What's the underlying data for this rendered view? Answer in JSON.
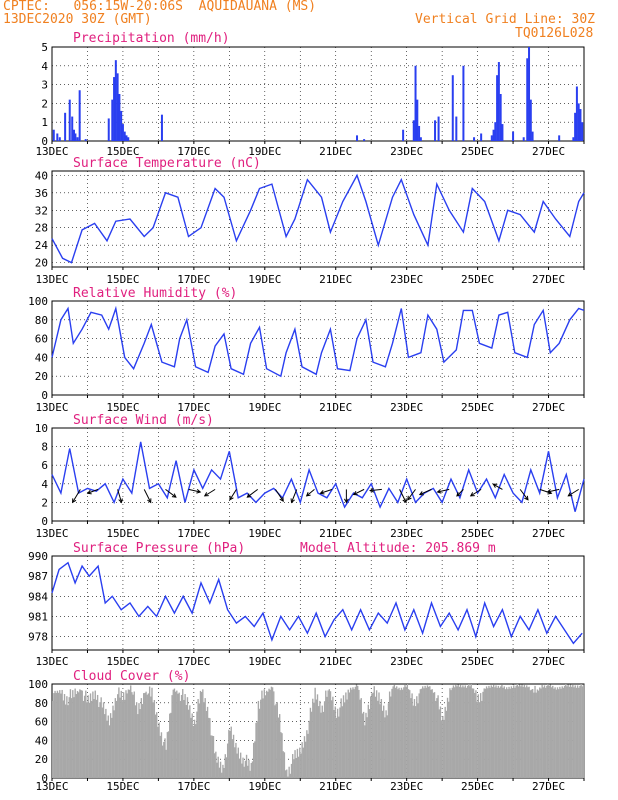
{
  "header": {
    "left_line1": "CPTEC:   056:15W-20:06S  AQUIDAUANA (MS)",
    "left_line2": "13DEC2020 30Z (GMT)",
    "right_line1": "Vertical Grid Line: 30Z",
    "right_line2": "TQ0126L028"
  },
  "colors": {
    "title": "#e0207f",
    "header": "#f08020",
    "line": "#2a3ff0",
    "cloud": "#a8a8a8",
    "wind_arrow": "#000000"
  },
  "x_ticks": [
    "13DEC",
    "15DEC",
    "17DEC",
    "19DEC",
    "21DEC",
    "23DEC",
    "25DEC",
    "27DEC"
  ],
  "chart_data": [
    {
      "id": "precip",
      "type": "bar",
      "title": "Precipitation (mm/h)",
      "x": [
        0.05,
        0.15,
        0.22,
        0.37,
        0.5,
        0.57,
        0.62,
        0.66,
        0.72,
        0.78,
        0.95,
        1.6,
        1.7,
        1.75,
        1.8,
        1.85,
        1.9,
        1.95,
        2.0,
        2.05,
        2.1,
        2.15,
        3.1,
        8.6,
        8.8,
        9.9,
        10.2,
        10.25,
        10.3,
        10.35,
        10.4,
        10.8,
        10.9,
        11.3,
        11.4,
        11.6,
        11.9,
        12.1,
        12.4,
        12.45,
        12.5,
        12.55,
        12.6,
        12.65,
        12.7,
        13.0,
        13.3,
        13.4,
        13.45,
        13.5,
        13.55,
        14.3,
        14.7,
        14.75,
        14.8,
        14.85,
        14.9,
        14.95
      ],
      "values": [
        0.6,
        0.4,
        0.2,
        1.5,
        2.2,
        1.3,
        0.6,
        0.4,
        0.2,
        2.7,
        0.1,
        1.2,
        2.2,
        3.4,
        4.3,
        3.6,
        2.5,
        1.6,
        0.9,
        0.5,
        0.3,
        0.2,
        1.4,
        0.3,
        0.1,
        0.6,
        1.1,
        4.0,
        2.2,
        0.8,
        0.2,
        1.1,
        1.3,
        3.5,
        1.3,
        4.0,
        0.2,
        0.4,
        0.3,
        0.6,
        1.0,
        3.5,
        4.2,
        2.5,
        0.9,
        0.5,
        0.2,
        4.4,
        5.0,
        2.2,
        0.5,
        0.3,
        0.2,
        1.5,
        2.9,
        2.0,
        1.7,
        1.0
      ],
      "ylim": [
        0,
        5
      ],
      "y_ticks": [
        "0",
        "1",
        "2",
        "3",
        "4",
        "5"
      ]
    },
    {
      "id": "temp",
      "type": "line",
      "title": "Surface Temperature (nC)",
      "x": [
        0,
        0.3,
        0.55,
        0.85,
        1.2,
        1.55,
        1.8,
        2.2,
        2.6,
        2.85,
        3.2,
        3.55,
        3.85,
        4.2,
        4.6,
        4.85,
        5.2,
        5.6,
        5.85,
        6.2,
        6.6,
        6.85,
        7.2,
        7.6,
        7.85,
        8.2,
        8.6,
        8.85,
        9.2,
        9.6,
        9.85,
        10.2,
        10.6,
        10.85,
        11.2,
        11.6,
        11.85,
        12.2,
        12.6,
        12.85,
        13.2,
        13.6,
        13.85,
        14.2,
        14.6,
        14.85,
        15.0
      ],
      "values": [
        25.5,
        21,
        20,
        27.5,
        29,
        25,
        29.5,
        30,
        26,
        28,
        36,
        35,
        26,
        28,
        37,
        35,
        25,
        32,
        37,
        38,
        26,
        30,
        39,
        35,
        27,
        34,
        40,
        34,
        24,
        35,
        39,
        31,
        24,
        38,
        32,
        27,
        37,
        34,
        25,
        32,
        31,
        27,
        34,
        30,
        26,
        34,
        36
      ],
      "ylim": [
        19,
        41
      ],
      "y_ticks": [
        "20",
        "24",
        "28",
        "32",
        "36",
        "40"
      ]
    },
    {
      "id": "rh",
      "type": "line",
      "title": "Relative Humidity (%)",
      "x": [
        0,
        0.25,
        0.45,
        0.6,
        0.85,
        1.1,
        1.4,
        1.6,
        1.8,
        2.05,
        2.3,
        2.6,
        2.8,
        3.1,
        3.45,
        3.6,
        3.8,
        4.05,
        4.4,
        4.6,
        4.85,
        5.05,
        5.4,
        5.6,
        5.85,
        6.05,
        6.45,
        6.6,
        6.85,
        7.05,
        7.45,
        7.6,
        7.85,
        8.05,
        8.4,
        8.6,
        8.85,
        9.05,
        9.4,
        9.6,
        9.85,
        10.05,
        10.4,
        10.6,
        10.85,
        11.05,
        11.4,
        11.6,
        11.85,
        12.05,
        12.4,
        12.6,
        12.85,
        13.05,
        13.4,
        13.6,
        13.85,
        14.05,
        14.3,
        14.6,
        14.85,
        15.0
      ],
      "values": [
        40,
        80,
        92,
        55,
        70,
        88,
        85,
        70,
        92,
        40,
        28,
        55,
        75,
        35,
        30,
        60,
        80,
        30,
        24,
        52,
        65,
        28,
        22,
        55,
        72,
        28,
        20,
        45,
        70,
        30,
        22,
        45,
        70,
        28,
        26,
        60,
        80,
        35,
        30,
        55,
        92,
        40,
        45,
        85,
        70,
        35,
        48,
        90,
        90,
        55,
        50,
        85,
        88,
        45,
        40,
        75,
        90,
        45,
        55,
        80,
        92,
        90
      ],
      "ylim": [
        0,
        100
      ],
      "y_ticks": [
        "0",
        "20",
        "40",
        "60",
        "80",
        "100"
      ]
    },
    {
      "id": "wind",
      "type": "line",
      "title": "Surface Wind (m/s)",
      "x": [
        0,
        0.25,
        0.5,
        0.75,
        1.0,
        1.25,
        1.5,
        1.75,
        2.0,
        2.25,
        2.5,
        2.75,
        3.0,
        3.25,
        3.5,
        3.75,
        4.0,
        4.25,
        4.5,
        4.75,
        5.0,
        5.25,
        5.5,
        5.75,
        6.0,
        6.25,
        6.5,
        6.75,
        7.0,
        7.25,
        7.5,
        7.75,
        8.0,
        8.25,
        8.5,
        8.75,
        9.0,
        9.25,
        9.5,
        9.75,
        10.0,
        10.25,
        10.5,
        10.75,
        11.0,
        11.25,
        11.5,
        11.75,
        12.0,
        12.25,
        12.5,
        12.75,
        13.0,
        13.25,
        13.5,
        13.75,
        14.0,
        14.25,
        14.5,
        14.75,
        15.0
      ],
      "values": [
        5,
        3,
        7.8,
        3,
        3.5,
        3.2,
        4,
        2,
        4.5,
        3,
        8.5,
        3.5,
        4,
        2.5,
        6.5,
        2,
        5.5,
        3.5,
        5.5,
        4.5,
        7.5,
        2.5,
        3,
        2,
        3,
        3.5,
        2.5,
        4.5,
        2,
        5.5,
        3,
        2.5,
        4,
        1.5,
        3,
        2.5,
        4,
        1.5,
        3.5,
        2,
        4.5,
        2,
        3,
        3.5,
        2,
        4.5,
        2.5,
        5.5,
        3,
        4.5,
        2.5,
        5,
        3,
        2,
        5.5,
        3,
        7.5,
        2.5,
        5,
        1,
        4.5
      ],
      "arrows": [
        {
          "x": 0.8,
          "u": -0.6,
          "v": 1.0
        },
        {
          "x": 1.3,
          "u": -0.8,
          "v": 0.3
        },
        {
          "x": 1.85,
          "u": 0.3,
          "v": 1.0
        },
        {
          "x": 2.6,
          "u": 0.5,
          "v": 1.0
        },
        {
          "x": 3.2,
          "u": 0.8,
          "v": 0.6
        },
        {
          "x": 3.85,
          "u": 0.9,
          "v": 0.2
        },
        {
          "x": 4.6,
          "u": -0.8,
          "v": 0.5
        },
        {
          "x": 5.2,
          "u": -0.5,
          "v": 0.8
        },
        {
          "x": 5.8,
          "u": -0.8,
          "v": 0.6
        },
        {
          "x": 6.3,
          "u": 0.6,
          "v": 0.9
        },
        {
          "x": 6.9,
          "u": -0.4,
          "v": 1.0
        },
        {
          "x": 7.4,
          "u": -0.6,
          "v": 0.5
        },
        {
          "x": 7.9,
          "u": -0.9,
          "v": 0.3
        },
        {
          "x": 8.3,
          "u": 0.0,
          "v": 1.0
        },
        {
          "x": 8.8,
          "u": -0.8,
          "v": 0.4
        },
        {
          "x": 9.3,
          "u": -0.9,
          "v": 0.1
        },
        {
          "x": 9.8,
          "u": 0.5,
          "v": 1.0
        },
        {
          "x": 10.25,
          "u": -0.6,
          "v": 0.8
        },
        {
          "x": 10.7,
          "u": -0.9,
          "v": 0.4
        },
        {
          "x": 11.2,
          "u": -0.9,
          "v": 0.2
        },
        {
          "x": 11.6,
          "u": -0.5,
          "v": 0.5
        },
        {
          "x": 12.1,
          "u": -0.8,
          "v": 0.5
        },
        {
          "x": 12.7,
          "u": -0.7,
          "v": -0.4
        },
        {
          "x": 13.2,
          "u": 0.6,
          "v": 0.8
        },
        {
          "x": 13.75,
          "u": 0.9,
          "v": 0.3
        },
        {
          "x": 14.3,
          "u": -0.9,
          "v": 0.2
        },
        {
          "x": 14.85,
          "u": -0.8,
          "v": 0.5
        }
      ],
      "ylim": [
        0,
        10
      ],
      "y_ticks": [
        "0",
        "2",
        "4",
        "6",
        "8",
        "10"
      ]
    },
    {
      "id": "pressure",
      "type": "line",
      "title": "Surface Pressure (hPa)",
      "subtitle": "Model Altitude: 205.869 m",
      "x": [
        0,
        0.2,
        0.45,
        0.65,
        0.85,
        1.05,
        1.3,
        1.5,
        1.7,
        1.95,
        2.2,
        2.45,
        2.7,
        2.95,
        3.2,
        3.45,
        3.7,
        3.95,
        4.2,
        4.45,
        4.7,
        4.95,
        5.2,
        5.45,
        5.7,
        5.95,
        6.2,
        6.45,
        6.7,
        6.95,
        7.2,
        7.45,
        7.7,
        7.95,
        8.2,
        8.45,
        8.7,
        8.95,
        9.2,
        9.45,
        9.7,
        9.95,
        10.2,
        10.45,
        10.7,
        10.95,
        11.2,
        11.45,
        11.7,
        11.95,
        12.2,
        12.45,
        12.7,
        12.95,
        13.2,
        13.45,
        13.7,
        13.95,
        14.2,
        14.45,
        14.7,
        14.95
      ],
      "values": [
        984.5,
        988,
        989,
        986,
        988.5,
        987,
        988.5,
        983,
        984,
        982,
        983,
        981,
        982.5,
        981,
        984,
        981.5,
        984,
        981.5,
        986,
        983,
        986.5,
        982,
        980,
        981,
        979.5,
        981.5,
        977.5,
        981,
        979,
        981,
        978.5,
        981.5,
        978,
        980.5,
        982,
        979,
        982,
        979,
        981.5,
        980,
        983,
        979,
        982,
        978.5,
        983,
        979.5,
        981.5,
        979,
        982,
        978,
        983,
        979.5,
        982,
        978,
        981,
        979,
        982,
        978.5,
        981,
        979,
        977,
        978.5
      ],
      "ylim": [
        976,
        990
      ],
      "y_ticks": [
        "978",
        "981",
        "984",
        "987",
        "990"
      ]
    },
    {
      "id": "cloud",
      "type": "area",
      "title": "Cloud Cover (%)",
      "x": [
        0,
        0.2,
        0.4,
        0.6,
        0.8,
        1.0,
        1.2,
        1.4,
        1.6,
        1.8,
        2.0,
        2.2,
        2.4,
        2.6,
        2.8,
        3.0,
        3.2,
        3.4,
        3.6,
        3.8,
        4.0,
        4.2,
        4.4,
        4.6,
        4.8,
        5.0,
        5.2,
        5.4,
        5.6,
        5.8,
        6.0,
        6.2,
        6.4,
        6.6,
        6.8,
        7.0,
        7.2,
        7.4,
        7.6,
        7.8,
        8.0,
        8.2,
        8.4,
        8.6,
        8.8,
        9.0,
        9.2,
        9.4,
        9.6,
        9.8,
        10.0,
        10.2,
        10.4,
        10.6,
        10.8,
        11.0,
        11.2,
        11.4,
        11.6,
        11.8,
        12.0,
        12.2,
        12.4,
        12.6,
        12.8,
        13.0,
        13.2,
        13.4,
        13.6,
        13.8,
        14.0,
        14.2,
        14.4,
        14.6,
        14.8,
        15.0
      ],
      "values": [
        90,
        92,
        85,
        88,
        95,
        80,
        92,
        75,
        60,
        90,
        85,
        98,
        70,
        92,
        88,
        55,
        30,
        95,
        90,
        80,
        60,
        92,
        70,
        20,
        10,
        50,
        30,
        20,
        10,
        80,
        90,
        98,
        60,
        5,
        20,
        30,
        55,
        90,
        75,
        95,
        70,
        80,
        95,
        98,
        60,
        92,
        85,
        70,
        98,
        95,
        98,
        80,
        95,
        98,
        90,
        60,
        95,
        98,
        98,
        98,
        85,
        95,
        98,
        98,
        95,
        98,
        98,
        98,
        90,
        98,
        98,
        95,
        98,
        98,
        98,
        98
      ],
      "ylim": [
        0,
        100
      ],
      "y_ticks": [
        "0",
        "20",
        "40",
        "60",
        "80",
        "100"
      ]
    }
  ]
}
